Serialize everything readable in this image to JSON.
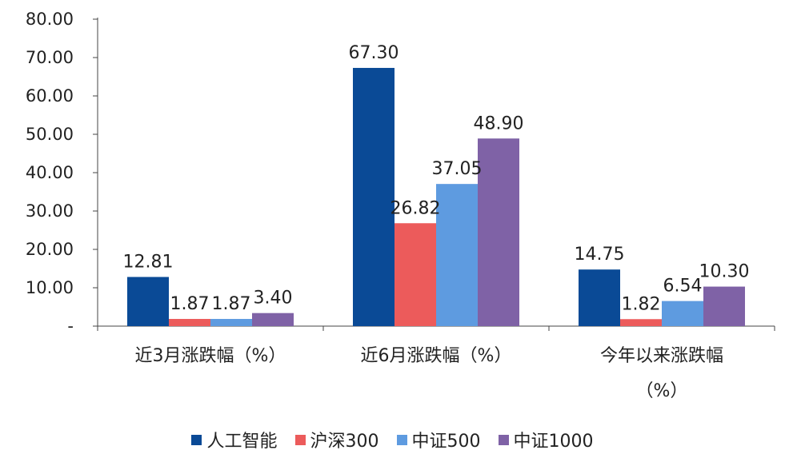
{
  "chart_data": {
    "type": "bar",
    "categories": [
      "近3月涨跌幅（%）",
      "近6月涨跌幅（%）",
      "今年以来涨跌幅（%）"
    ],
    "category_lines": [
      [
        "近3月涨跌幅（%）"
      ],
      [
        "近6月涨跌幅（%）"
      ],
      [
        "今年以来涨跌幅",
        "（%）"
      ]
    ],
    "series": [
      {
        "name": "人工智能",
        "color": "#0a4a96",
        "values": [
          12.81,
          67.3,
          14.75
        ]
      },
      {
        "name": "沪深300",
        "color": "#ec5b5b",
        "values": [
          1.87,
          26.82,
          1.82
        ]
      },
      {
        "name": "中证500",
        "color": "#5e9be0",
        "values": [
          1.87,
          37.05,
          6.54
        ]
      },
      {
        "name": "中证1000",
        "color": "#7f62a6",
        "values": [
          3.4,
          48.9,
          10.3
        ]
      }
    ],
    "data_labels": [
      [
        "12.81",
        "67.30",
        "14.75"
      ],
      [
        "1.87",
        "26.82",
        "1.82"
      ],
      [
        "1.87",
        "37.05",
        "6.54"
      ],
      [
        "3.40",
        "48.90",
        "10.30"
      ]
    ],
    "yticks": [
      0,
      10,
      20,
      30,
      40,
      50,
      60,
      70,
      80
    ],
    "ytick_labels": [
      "-",
      "10.00",
      "20.00",
      "30.00",
      "40.00",
      "50.00",
      "60.00",
      "70.00",
      "80.00"
    ],
    "ylim": [
      0,
      80
    ],
    "legend_position": "bottom",
    "grid": false
  }
}
